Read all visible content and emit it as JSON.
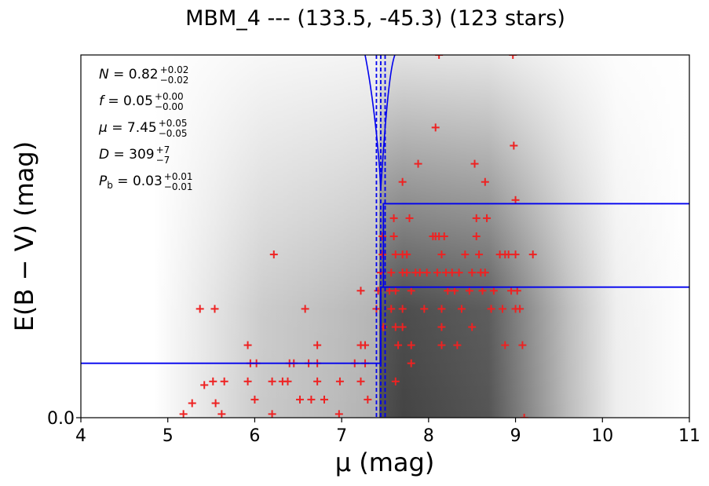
{
  "chart_data": {
    "type": "heatmap",
    "title": "MBM_4 --- (133.5, -45.3) (123 stars)",
    "xlabel": "μ (mag)",
    "ylabel": "E(B − V) (mag)",
    "xlim": [
      4,
      11
    ],
    "xticks": [
      "4",
      "5",
      "6",
      "7",
      "8",
      "9",
      "10",
      "11"
    ],
    "yticks": [
      "0.0"
    ],
    "grid": false,
    "annotations": [
      {
        "sym": "N",
        "val": "0.82",
        "plus": "+0.02",
        "minus": "−0.02"
      },
      {
        "sym": "f",
        "val": "0.05",
        "plus": "+0.00",
        "minus": "−0.00"
      },
      {
        "sym": "μ",
        "val": "7.45",
        "plus": "+0.05",
        "minus": "−0.05"
      },
      {
        "sym": "D",
        "val": "309",
        "plus": "+7",
        "minus": "−7"
      },
      {
        "sym": "P_b",
        "val": "0.03",
        "plus": "+0.01",
        "minus": "−0.01"
      }
    ],
    "fit_mu": 7.45,
    "fit_mu_lo": 7.4,
    "fit_mu_hi": 7.5,
    "stars_scale": "E(B−V) axis relative (0 = bottom, 1 = top of frame)",
    "stars": [
      {
        "x": 5.18,
        "y": 0.01
      },
      {
        "x": 5.28,
        "y": 0.04
      },
      {
        "x": 5.42,
        "y": 0.09
      },
      {
        "x": 5.55,
        "y": 0.04
      },
      {
        "x": 5.62,
        "y": 0.01
      },
      {
        "x": 5.37,
        "y": 0.3
      },
      {
        "x": 5.54,
        "y": 0.3
      },
      {
        "x": 5.52,
        "y": 0.1
      },
      {
        "x": 5.65,
        "y": 0.1
      },
      {
        "x": 5.92,
        "y": 0.2
      },
      {
        "x": 5.95,
        "y": 0.15
      },
      {
        "x": 6.02,
        "y": 0.15
      },
      {
        "x": 5.92,
        "y": 0.1
      },
      {
        "x": 6.0,
        "y": 0.05
      },
      {
        "x": 6.2,
        "y": 0.01
      },
      {
        "x": 6.22,
        "y": 0.45
      },
      {
        "x": 6.2,
        "y": 0.1
      },
      {
        "x": 6.32,
        "y": 0.1
      },
      {
        "x": 6.38,
        "y": 0.1
      },
      {
        "x": 6.4,
        "y": 0.15
      },
      {
        "x": 6.45,
        "y": 0.15
      },
      {
        "x": 6.52,
        "y": 0.05
      },
      {
        "x": 6.58,
        "y": 0.3
      },
      {
        "x": 6.62,
        "y": 0.15
      },
      {
        "x": 6.65,
        "y": 0.05
      },
      {
        "x": 6.72,
        "y": 0.2
      },
      {
        "x": 6.72,
        "y": 0.15
      },
      {
        "x": 6.72,
        "y": 0.1
      },
      {
        "x": 6.8,
        "y": 0.05
      },
      {
        "x": 6.98,
        "y": 0.1
      },
      {
        "x": 6.97,
        "y": 0.01
      },
      {
        "x": 7.15,
        "y": 0.15
      },
      {
        "x": 7.22,
        "y": 0.2
      },
      {
        "x": 7.27,
        "y": 0.2
      },
      {
        "x": 7.27,
        "y": 0.15
      },
      {
        "x": 7.22,
        "y": 0.35
      },
      {
        "x": 7.22,
        "y": 0.1
      },
      {
        "x": 7.3,
        "y": 0.05
      },
      {
        "x": 7.4,
        "y": 0.3
      },
      {
        "x": 7.42,
        "y": 0.35
      },
      {
        "x": 7.45,
        "y": 0.4
      },
      {
        "x": 7.47,
        "y": 0.5
      },
      {
        "x": 7.47,
        "y": 0.45
      },
      {
        "x": 7.48,
        "y": 0.25
      },
      {
        "x": 7.55,
        "y": 0.35
      },
      {
        "x": 7.57,
        "y": 0.4
      },
      {
        "x": 7.57,
        "y": 0.3
      },
      {
        "x": 7.6,
        "y": 0.55
      },
      {
        "x": 7.6,
        "y": 0.5
      },
      {
        "x": 7.62,
        "y": 0.45
      },
      {
        "x": 7.62,
        "y": 0.35
      },
      {
        "x": 7.62,
        "y": 0.25
      },
      {
        "x": 7.62,
        "y": 0.1
      },
      {
        "x": 7.65,
        "y": 0.2
      },
      {
        "x": 7.7,
        "y": 0.45
      },
      {
        "x": 7.7,
        "y": 0.4
      },
      {
        "x": 7.7,
        "y": 0.3
      },
      {
        "x": 7.7,
        "y": 0.25
      },
      {
        "x": 7.7,
        "y": 0.65
      },
      {
        "x": 7.75,
        "y": 0.45
      },
      {
        "x": 7.75,
        "y": 0.4
      },
      {
        "x": 7.78,
        "y": 0.55
      },
      {
        "x": 7.8,
        "y": 0.35
      },
      {
        "x": 7.8,
        "y": 0.2
      },
      {
        "x": 7.8,
        "y": 0.15
      },
      {
        "x": 7.85,
        "y": 0.4
      },
      {
        "x": 7.88,
        "y": 0.7
      },
      {
        "x": 7.9,
        "y": 0.4
      },
      {
        "x": 7.95,
        "y": 0.3
      },
      {
        "x": 7.98,
        "y": 0.4
      },
      {
        "x": 8.05,
        "y": 0.5
      },
      {
        "x": 8.08,
        "y": 0.5
      },
      {
        "x": 8.08,
        "y": 0.8
      },
      {
        "x": 8.1,
        "y": 0.4
      },
      {
        "x": 8.12,
        "y": 0.5
      },
      {
        "x": 8.15,
        "y": 0.45
      },
      {
        "x": 8.15,
        "y": 0.3
      },
      {
        "x": 8.15,
        "y": 0.25
      },
      {
        "x": 8.15,
        "y": 0.2
      },
      {
        "x": 8.18,
        "y": 0.5
      },
      {
        "x": 8.2,
        "y": 0.4
      },
      {
        "x": 8.22,
        "y": 0.35
      },
      {
        "x": 8.27,
        "y": 0.4
      },
      {
        "x": 8.3,
        "y": 0.35
      },
      {
        "x": 8.33,
        "y": 0.2
      },
      {
        "x": 8.35,
        "y": 0.4
      },
      {
        "x": 8.38,
        "y": 0.3
      },
      {
        "x": 8.42,
        "y": 0.45
      },
      {
        "x": 8.47,
        "y": 0.35
      },
      {
        "x": 8.5,
        "y": 0.4
      },
      {
        "x": 8.5,
        "y": 0.25
      },
      {
        "x": 8.53,
        "y": 0.7
      },
      {
        "x": 8.55,
        "y": 0.55
      },
      {
        "x": 8.55,
        "y": 0.5
      },
      {
        "x": 8.58,
        "y": 0.45
      },
      {
        "x": 8.6,
        "y": 0.4
      },
      {
        "x": 8.62,
        "y": 0.35
      },
      {
        "x": 8.65,
        "y": 0.4
      },
      {
        "x": 8.65,
        "y": 0.65
      },
      {
        "x": 8.67,
        "y": 0.55
      },
      {
        "x": 8.72,
        "y": 0.3
      },
      {
        "x": 8.75,
        "y": 0.35
      },
      {
        "x": 8.82,
        "y": 0.45
      },
      {
        "x": 8.85,
        "y": 0.3
      },
      {
        "x": 8.88,
        "y": 0.45
      },
      {
        "x": 8.88,
        "y": 0.2
      },
      {
        "x": 8.92,
        "y": 0.45
      },
      {
        "x": 8.95,
        "y": 0.35
      },
      {
        "x": 8.98,
        "y": 0.75
      },
      {
        "x": 9.0,
        "y": 0.6
      },
      {
        "x": 9.0,
        "y": 0.45
      },
      {
        "x": 9.0,
        "y": 0.3
      },
      {
        "x": 9.02,
        "y": 0.35
      },
      {
        "x": 9.05,
        "y": 0.3
      },
      {
        "x": 9.08,
        "y": 0.2
      },
      {
        "x": 9.1,
        "y": 0.0
      },
      {
        "x": 9.2,
        "y": 0.45
      },
      {
        "x": 8.12,
        "y": 1.0
      },
      {
        "x": 8.97,
        "y": 1.0
      }
    ],
    "profile": [
      {
        "x": 4.0,
        "y": 0.15
      },
      {
        "x": 7.45,
        "y": 0.15
      },
      {
        "x": 7.45,
        "y": 0.36
      },
      {
        "x": 7.48,
        "y": 0.36
      },
      {
        "x": 7.48,
        "y": 0.59
      },
      {
        "x": 11.0,
        "y": 0.59
      }
    ],
    "profile_upper": [
      {
        "x": 7.48,
        "y": 0.36
      },
      {
        "x": 11.0,
        "y": 0.36
      }
    ]
  }
}
